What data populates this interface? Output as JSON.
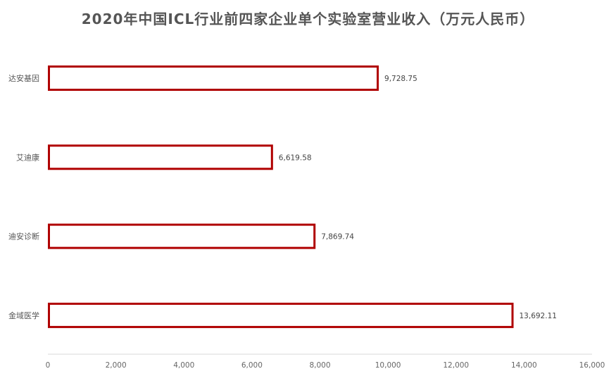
{
  "chart_data": {
    "type": "bar",
    "orientation": "horizontal",
    "title": "2020年中国ICL行业前四家企业单个实验室营业收入（万元人民币）",
    "categories": [
      "达安基因",
      "艾迪康",
      "迪安诊断",
      "金域医学"
    ],
    "values": [
      9728.75,
      6619.58,
      7869.74,
      13692.11
    ],
    "value_labels": [
      "9,728.75",
      "6,619.58",
      "7,869.74",
      "13,692.11"
    ],
    "xlim": [
      0,
      16000
    ],
    "xticks": [
      "0",
      "2,000",
      "4,000",
      "6,000",
      "8,000",
      "10,000",
      "12,000",
      "14,000",
      "16,000"
    ],
    "grid": false,
    "legend": "none",
    "bar_fill": "#ffffff",
    "bar_stroke": "#b00000",
    "axis_color": "#d9d9d9"
  }
}
